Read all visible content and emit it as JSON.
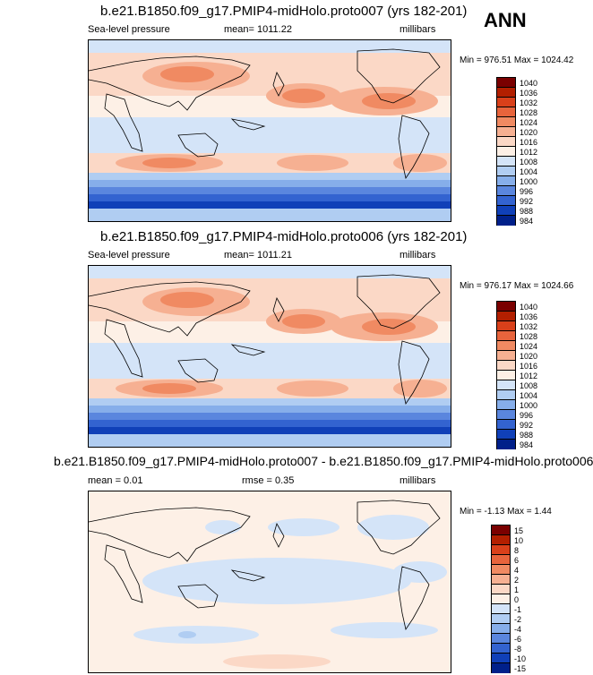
{
  "season": "ANN",
  "panels": [
    {
      "title": "b.e21.B1850.f09_g17.PMIP4-midHolo.proto007 (yrs 182-201)",
      "left_label": "Sea-level pressure",
      "mean_label": "mean= 1011.22",
      "units": "millibars",
      "minmax": "Min = 976.51 Max = 1024.42",
      "colorbar": [
        "1040",
        "1036",
        "1032",
        "1028",
        "1024",
        "1020",
        "1016",
        "1012",
        "1008",
        "1004",
        "1000",
        "996",
        "992",
        "988",
        "984"
      ]
    },
    {
      "title": "b.e21.B1850.f09_g17.PMIP4-midHolo.proto006 (yrs 182-201)",
      "left_label": "Sea-level pressure",
      "mean_label": "mean= 1011.21",
      "units": "millibars",
      "minmax": "Min = 976.17 Max = 1024.66",
      "colorbar": [
        "1040",
        "1036",
        "1032",
        "1028",
        "1024",
        "1020",
        "1016",
        "1012",
        "1008",
        "1004",
        "1000",
        "996",
        "992",
        "988",
        "984"
      ]
    },
    {
      "title": "b.e21.B1850.f09_g17.PMIP4-midHolo.proto007 - b.e21.B1850.f09_g17.PMIP4-midHolo.proto006",
      "left_label": "mean =   0.01",
      "mean_label": "rmse =   0.35",
      "units": "millibars",
      "minmax": "Min =  -1.13 Max =   1.44",
      "colorbar": [
        "15",
        "10",
        "8",
        "6",
        "4",
        "2",
        "1",
        "0",
        "-1",
        "-2",
        "-4",
        "-6",
        "-8",
        "-10",
        "-15"
      ]
    }
  ],
  "colors": {
    "abs_scale": [
      "#7a0000",
      "#b21f00",
      "#d9401a",
      "#e8643c",
      "#f08a62",
      "#f6b092",
      "#fbd8c6",
      "#fdf0e6",
      "#d4e4f8",
      "#b0cdf2",
      "#86aeea",
      "#5a86de",
      "#3363d0",
      "#1040b8",
      "#00208a"
    ],
    "diff_scale": [
      "#7a0000",
      "#b21f00",
      "#d9401a",
      "#e8643c",
      "#f08a62",
      "#f6b092",
      "#fbd8c6",
      "#fdf0e6",
      "#d4e4f8",
      "#b0cdf2",
      "#86aeea",
      "#5a86de",
      "#3363d0",
      "#1040b8",
      "#00208a"
    ]
  }
}
